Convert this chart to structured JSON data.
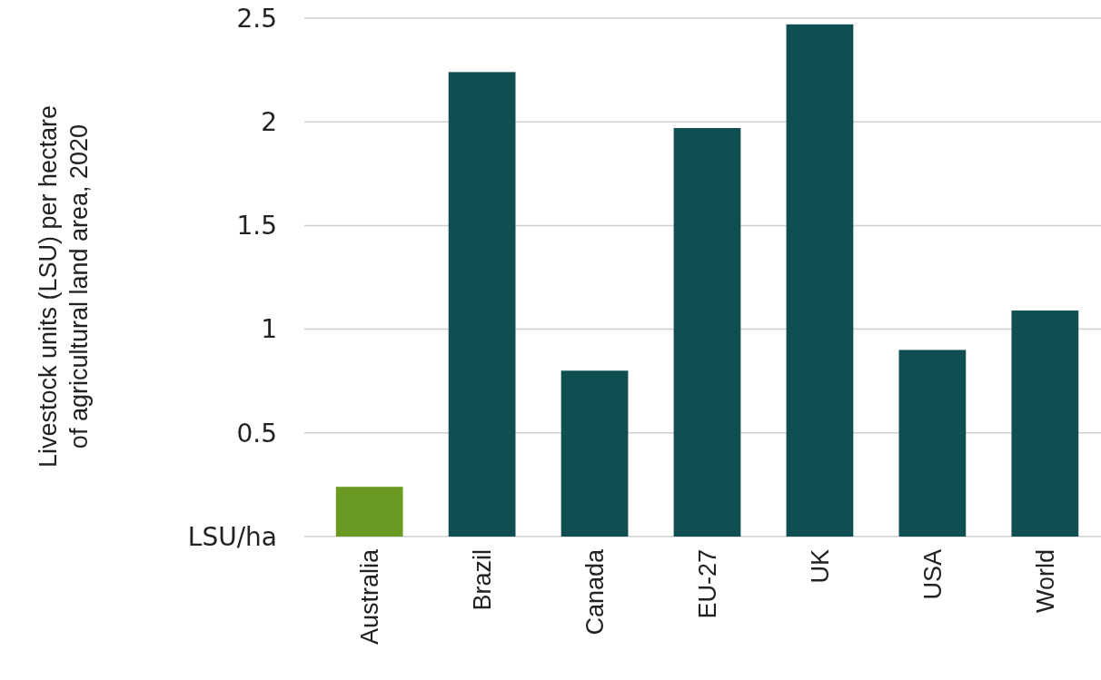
{
  "chart_data": {
    "type": "bar",
    "ylabel": "Livestock units (LSU) per hectare of agricultural land area, 2020",
    "categories": [
      "Australia",
      "Brazil",
      "Canada",
      "EU-27",
      "UK",
      "USA",
      "World"
    ],
    "values": [
      0.24,
      2.24,
      0.8,
      1.97,
      2.47,
      0.9,
      1.09
    ],
    "colors": [
      "#6b9a22",
      "#0f4f52",
      "#0f4f52",
      "#0f4f52",
      "#0f4f52",
      "#0f4f52",
      "#0f4f52"
    ],
    "ylim": [
      0,
      2.5
    ],
    "yticks": [
      {
        "value": 0,
        "label": "LSU/ha"
      },
      {
        "value": 0.5,
        "label": "0.5"
      },
      {
        "value": 1,
        "label": "1"
      },
      {
        "value": 1.5,
        "label": "1.5"
      },
      {
        "value": 2,
        "label": "2"
      },
      {
        "value": 2.5,
        "label": "2.5"
      }
    ],
    "grid": "y"
  }
}
